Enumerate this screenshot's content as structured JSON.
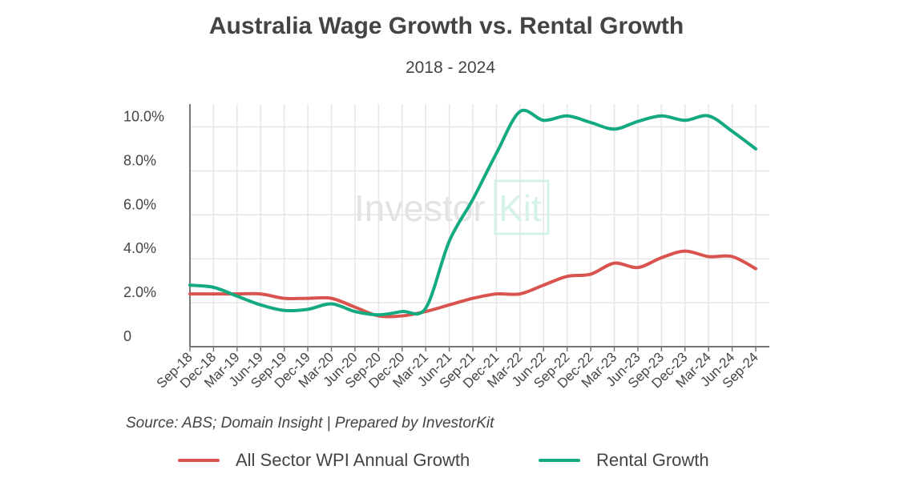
{
  "chart_data": {
    "type": "line",
    "title": "Australia Wage Growth vs. Rental Growth",
    "subtitle": "2018 - 2024",
    "source": "Source: ABS; Domain Insight | Prepared by InvestorKit",
    "watermark": "InvestorKit",
    "categories": [
      "Sep-18",
      "Dec-18",
      "Mar-19",
      "Jun-19",
      "Sep-19",
      "Dec-19",
      "Mar-20",
      "Jun-20",
      "Sep-20",
      "Dec-20",
      "Mar-21",
      "Jun-21",
      "Sep-21",
      "Dec-21",
      "Mar-22",
      "Jun-22",
      "Sep-22",
      "Dec-22",
      "Mar-23",
      "Jun-23",
      "Sep-23",
      "Dec-23",
      "Mar-24",
      "Jun-24",
      "Sep-24"
    ],
    "yticks": [
      {
        "v": 0,
        "label": "0"
      },
      {
        "v": 2,
        "label": "2.0%"
      },
      {
        "v": 4,
        "label": "4.0%"
      },
      {
        "v": 6,
        "label": "6.0%"
      },
      {
        "v": 8,
        "label": "8.0%"
      },
      {
        "v": 10,
        "label": "10.0%"
      }
    ],
    "ylim": [
      0,
      11
    ],
    "grid": true,
    "legend_position": "bottom",
    "series": [
      {
        "name": "All Sector WPI Annual Growth",
        "color": "#d9534f",
        "values": [
          2.4,
          2.4,
          2.4,
          2.4,
          2.2,
          2.2,
          2.2,
          1.8,
          1.4,
          1.4,
          1.6,
          1.9,
          2.2,
          2.4,
          2.4,
          2.8,
          3.2,
          3.3,
          3.8,
          3.6,
          4.05,
          4.35,
          4.1,
          4.1,
          3.55
        ]
      },
      {
        "name": "Rental Growth",
        "color": "#13a981",
        "values": [
          2.8,
          2.7,
          2.3,
          1.9,
          1.65,
          1.7,
          1.95,
          1.6,
          1.45,
          1.6,
          1.75,
          4.8,
          6.7,
          8.8,
          10.7,
          10.3,
          10.5,
          10.2,
          9.9,
          10.25,
          10.5,
          10.3,
          10.5,
          9.8,
          9.0
        ]
      }
    ]
  }
}
